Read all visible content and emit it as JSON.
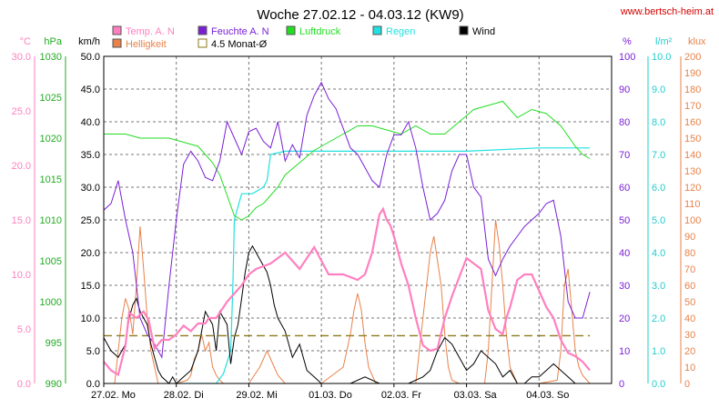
{
  "header": {
    "title": "Woche 27.02.12 - 04.03.12 (KW9)",
    "url": "www.bertsch-heim.at"
  },
  "legend": [
    {
      "key": "temp",
      "label": "Temp. A. N",
      "color": "#ff80c0"
    },
    {
      "key": "hum",
      "label": "Feuchte A. N",
      "color": "#7a1fd6"
    },
    {
      "key": "press",
      "label": "Luftdruck",
      "color": "#22dd22"
    },
    {
      "key": "rain",
      "label": "Regen",
      "color": "#22e0e0"
    },
    {
      "key": "wind",
      "label": "Wind",
      "color": "#000000"
    },
    {
      "key": "light",
      "label": "Helligkeit",
      "color": "#e8824a"
    },
    {
      "key": "avg",
      "label": "4.5 Monat-Ø",
      "color": "#8b7a1a"
    }
  ],
  "axes": {
    "temp": {
      "unit": "°C",
      "color": "#ff80c0",
      "ticks": [
        "30.0",
        "25.0",
        "20.0",
        "15.0",
        "10.0",
        "5.0",
        "0.0"
      ]
    },
    "press": {
      "unit": "hPa",
      "color": "#22aa22",
      "ticks": [
        "1030",
        "1025",
        "1020",
        "1015",
        "1010",
        "1005",
        "1000",
        "995",
        "990"
      ]
    },
    "wind": {
      "unit": "km/h",
      "color": "#000000",
      "ticks": [
        "50.0",
        "45.0",
        "40.0",
        "35.0",
        "30.0",
        "25.0",
        "20.0",
        "15.0",
        "10.0",
        "5.0",
        "0.0"
      ]
    },
    "hum": {
      "unit": "%",
      "color": "#7a1fd6",
      "ticks": [
        "100",
        "90",
        "80",
        "70",
        "60",
        "50",
        "40",
        "30",
        "20",
        "10",
        "0"
      ]
    },
    "rain": {
      "unit": "l/m²",
      "color": "#22cccc",
      "ticks": [
        "10.0",
        "9.0",
        "8.0",
        "7.0",
        "6.0",
        "5.0",
        "4.0",
        "3.0",
        "2.0",
        "1.0",
        "0.0"
      ]
    },
    "light": {
      "unit": "klux",
      "color": "#e8824a",
      "ticks": [
        "200",
        "190",
        "180",
        "170",
        "160",
        "150",
        "140",
        "130",
        "120",
        "110",
        "100",
        "90",
        "80",
        "70",
        "60",
        "50",
        "40",
        "30",
        "20",
        "10",
        "0"
      ]
    }
  },
  "chart_data": {
    "type": "line",
    "title": "Woche 27.02.12 - 04.03.12 (KW9)",
    "x_unit": "days since 27.02. 00:00",
    "xlim": [
      0,
      7
    ],
    "x_tick_labels": [
      "27.02. Mo",
      "28.02. Di",
      "29.02. Mi",
      "01.03. Do",
      "02.03. Fr",
      "03.03. Sa",
      "04.03. So"
    ],
    "grid": true,
    "series": [
      {
        "name": "Temp. A. N",
        "axis": "temp",
        "ylim": [
          0,
          30
        ],
        "x": [
          0,
          0.1,
          0.2,
          0.3,
          0.35,
          0.45,
          0.55,
          0.62,
          0.7,
          0.8,
          0.9,
          1.0,
          1.1,
          1.2,
          1.3,
          1.4,
          1.45,
          1.55,
          1.7,
          1.9,
          2.0,
          2.1,
          2.3,
          2.5,
          2.7,
          2.9,
          3.1,
          3.3,
          3.5,
          3.6,
          3.7,
          3.8,
          3.85,
          3.9,
          3.95,
          4.0,
          4.1,
          4.2,
          4.3,
          4.4,
          4.5,
          4.6,
          4.7,
          4.8,
          5.0,
          5.2,
          5.3,
          5.4,
          5.5,
          5.55,
          5.6,
          5.7,
          5.8,
          5.9,
          6.0,
          6.1,
          6.2,
          6.3,
          6.4,
          6.5,
          6.6,
          6.7
        ],
        "y": [
          2.0,
          1.2,
          0.8,
          3.5,
          6.5,
          6.0,
          6.6,
          5.8,
          3.2,
          4.0,
          4.0,
          4.5,
          5.3,
          4.8,
          5.5,
          5.5,
          6.0,
          6.0,
          7.5,
          9.0,
          10.0,
          10.5,
          11.0,
          12.0,
          10.5,
          12.5,
          10.0,
          10.0,
          9.5,
          10.0,
          12.0,
          15.5,
          16.0,
          15.0,
          14.5,
          13.5,
          11.0,
          9.0,
          6.0,
          3.5,
          3.0,
          3.2,
          6.0,
          8.0,
          11.5,
          10.5,
          6.7,
          5.0,
          4.5,
          6.0,
          7.0,
          9.5,
          10.0,
          10.0,
          8.5,
          7.0,
          6.0,
          4.0,
          2.8,
          2.5,
          2.0,
          1.2
        ]
      },
      {
        "name": "Feuchte A. N",
        "axis": "hum",
        "ylim": [
          0,
          100
        ],
        "x": [
          0,
          0.1,
          0.2,
          0.3,
          0.4,
          0.5,
          0.6,
          0.7,
          0.8,
          0.9,
          1.0,
          1.1,
          1.2,
          1.3,
          1.4,
          1.5,
          1.6,
          1.7,
          1.8,
          1.9,
          2.0,
          2.1,
          2.2,
          2.3,
          2.4,
          2.5,
          2.6,
          2.7,
          2.8,
          2.9,
          3.0,
          3.1,
          3.2,
          3.3,
          3.4,
          3.5,
          3.6,
          3.7,
          3.8,
          3.9,
          4.0,
          4.1,
          4.2,
          4.3,
          4.4,
          4.5,
          4.6,
          4.7,
          4.8,
          4.9,
          5.0,
          5.1,
          5.2,
          5.3,
          5.4,
          5.5,
          5.6,
          5.7,
          5.8,
          5.9,
          6.0,
          6.1,
          6.2,
          6.3,
          6.4,
          6.5,
          6.6,
          6.7
        ],
        "y": [
          53,
          55,
          62,
          50,
          40,
          20,
          15,
          12,
          8,
          30,
          50,
          67,
          71,
          68,
          63,
          62,
          68,
          80,
          75,
          70,
          77,
          78,
          74,
          72,
          80,
          68,
          73,
          69,
          82,
          88,
          92,
          87,
          84,
          78,
          72,
          70,
          66,
          62,
          60,
          70,
          76,
          76,
          80,
          72,
          60,
          50,
          52,
          56,
          65,
          70,
          70,
          60,
          57,
          38,
          33,
          38,
          42,
          45,
          48,
          50,
          52,
          55,
          56,
          45,
          25,
          20,
          20,
          28
        ],
        "note": "values in %"
      },
      {
        "name": "Luftdruck",
        "axis": "press",
        "ylim": [
          990,
          1030
        ],
        "x": [
          0,
          0.3,
          0.5,
          0.7,
          0.9,
          1.1,
          1.3,
          1.5,
          1.6,
          1.7,
          1.8,
          1.9,
          2.0,
          2.1,
          2.2,
          2.3,
          2.4,
          2.5,
          2.7,
          2.9,
          3.1,
          3.3,
          3.5,
          3.7,
          3.9,
          4.1,
          4.3,
          4.5,
          4.7,
          4.9,
          5.1,
          5.3,
          5.5,
          5.7,
          5.9,
          6.1,
          6.3,
          6.5,
          6.6,
          6.7
        ],
        "y": [
          1020.5,
          1020.5,
          1020,
          1020,
          1020,
          1019.5,
          1019,
          1017,
          1015.5,
          1013,
          1010.5,
          1010,
          1010.5,
          1011.5,
          1012,
          1013,
          1014,
          1015.5,
          1017,
          1018.5,
          1019.5,
          1020.5,
          1021.5,
          1021.5,
          1021,
          1020.5,
          1021.5,
          1020.5,
          1020.5,
          1022,
          1023.5,
          1024,
          1024.5,
          1022.5,
          1023.5,
          1023,
          1021.5,
          1019,
          1018,
          1017.5
        ]
      },
      {
        "name": "Regen",
        "axis": "rain",
        "ylim": [
          0,
          10
        ],
        "x": [
          1.0,
          1.35,
          1.55,
          1.65,
          1.75,
          1.78,
          1.8,
          1.9,
          2.05,
          2.2,
          2.25,
          2.3,
          2.5,
          3.0,
          4.0,
          5.0,
          6.0,
          6.7
        ],
        "y": [
          0,
          0,
          0,
          0.3,
          1.0,
          3.0,
          5.0,
          5.8,
          5.8,
          6.0,
          6.2,
          7.0,
          7.1,
          7.1,
          7.1,
          7.1,
          7.2,
          7.2
        ]
      },
      {
        "name": "Wind",
        "axis": "wind",
        "ylim": [
          0,
          50
        ],
        "x": [
          0,
          0.1,
          0.2,
          0.3,
          0.35,
          0.4,
          0.45,
          0.5,
          0.55,
          0.6,
          0.65,
          0.7,
          0.75,
          0.8,
          0.85,
          0.9,
          0.95,
          1.0,
          1.1,
          1.2,
          1.3,
          1.35,
          1.4,
          1.45,
          1.5,
          1.55,
          1.6,
          1.65,
          1.7,
          1.75,
          1.8,
          1.85,
          1.9,
          1.95,
          2.0,
          2.05,
          2.1,
          2.15,
          2.2,
          2.25,
          2.3,
          2.35,
          2.4,
          2.5,
          2.6,
          2.7,
          2.8,
          2.9,
          3.0,
          3.2,
          3.4,
          3.6,
          3.8,
          4.0,
          4.2,
          4.4,
          4.5,
          4.6,
          4.7,
          4.8,
          4.9,
          5.0,
          5.1,
          5.2,
          5.3,
          5.4,
          5.5,
          5.6,
          5.7,
          5.8,
          5.9,
          6.0,
          6.1,
          6.2,
          6.3,
          6.4,
          6.5,
          6.6,
          6.7
        ],
        "y": [
          7,
          5,
          4,
          6,
          10,
          12,
          13,
          11,
          10,
          9,
          6,
          4,
          2,
          1,
          0.5,
          0,
          1,
          0,
          1,
          2,
          5,
          8,
          11,
          10,
          9,
          5,
          11,
          10,
          9,
          3,
          7,
          9,
          13,
          17,
          20,
          21,
          20,
          19,
          18,
          17,
          15,
          12,
          10,
          8,
          4,
          6,
          2,
          1,
          0,
          0,
          0,
          1,
          0,
          0,
          0,
          1,
          2,
          5,
          7,
          6,
          4,
          2,
          3,
          5,
          4,
          3,
          1,
          2,
          0,
          0,
          1,
          1,
          2,
          3,
          2,
          1,
          0,
          0,
          0
        ]
      },
      {
        "name": "Helligkeit",
        "axis": "light",
        "ylim": [
          0,
          200
        ],
        "x": [
          0,
          0.15,
          0.2,
          0.25,
          0.3,
          0.35,
          0.4,
          0.45,
          0.5,
          0.55,
          0.6,
          0.65,
          0.75,
          1.0,
          1.15,
          1.2,
          1.25,
          1.3,
          1.35,
          1.4,
          1.45,
          1.5,
          1.55,
          1.6,
          1.65,
          2.0,
          2.15,
          2.25,
          2.3,
          2.35,
          2.4,
          2.5,
          3.0,
          3.3,
          3.4,
          3.45,
          3.5,
          3.55,
          3.6,
          3.65,
          3.75,
          4.0,
          4.3,
          4.4,
          4.5,
          4.55,
          4.6,
          4.65,
          4.7,
          4.75,
          4.8,
          4.9,
          5.0,
          5.25,
          5.3,
          5.35,
          5.4,
          5.45,
          5.5,
          5.55,
          5.6,
          5.7,
          6.0,
          6.25,
          6.3,
          6.35,
          6.4,
          6.45,
          6.5,
          6.55,
          6.6,
          6.7
        ],
        "y": [
          0,
          0,
          20,
          40,
          52,
          45,
          30,
          60,
          96,
          70,
          40,
          20,
          0,
          0,
          2,
          5,
          15,
          20,
          30,
          20,
          25,
          10,
          5,
          2,
          0,
          0,
          10,
          20,
          15,
          10,
          5,
          0,
          0,
          10,
          30,
          45,
          55,
          45,
          25,
          10,
          0,
          0,
          0,
          40,
          80,
          90,
          75,
          60,
          30,
          10,
          2,
          0,
          0,
          0,
          20,
          60,
          100,
          85,
          60,
          30,
          10,
          0,
          0,
          2,
          20,
          60,
          70,
          45,
          20,
          10,
          5,
          0
        ]
      },
      {
        "name": "4.5 Monat-Ø",
        "axis": "wind",
        "ylim": [
          0,
          50
        ],
        "x": [
          0,
          6.7
        ],
        "y": [
          7.3,
          7.3
        ]
      }
    ]
  }
}
